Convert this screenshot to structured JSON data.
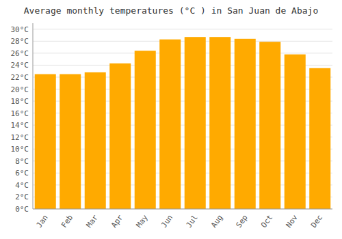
{
  "chart_data": {
    "type": "bar",
    "title": "Average monthly temperatures (°C ) in San Juan de Abajo",
    "categories": [
      "Jan",
      "Feb",
      "Mar",
      "Apr",
      "May",
      "Jun",
      "Jul",
      "Aug",
      "Sep",
      "Oct",
      "Nov",
      "Dec"
    ],
    "values": [
      22.5,
      22.5,
      22.8,
      24.3,
      26.4,
      28.3,
      28.7,
      28.7,
      28.4,
      27.9,
      25.8,
      23.5
    ],
    "color": "#FFAA00",
    "ylim": [
      0,
      31
    ],
    "yticks": [
      {
        "value": 0,
        "label": "0°C"
      },
      {
        "value": 2,
        "label": "2°C"
      },
      {
        "value": 4,
        "label": "4°C"
      },
      {
        "value": 6,
        "label": "6°C"
      },
      {
        "value": 8,
        "label": "8°C"
      },
      {
        "value": 10,
        "label": "10°C"
      },
      {
        "value": 12,
        "label": "12°C"
      },
      {
        "value": 14,
        "label": "14°C"
      },
      {
        "value": 16,
        "label": "16°C"
      },
      {
        "value": 18,
        "label": "18°C"
      },
      {
        "value": 20,
        "label": "20°C"
      },
      {
        "value": 22,
        "label": "22°C"
      },
      {
        "value": 24,
        "label": "24°C"
      },
      {
        "value": 26,
        "label": "26°C"
      },
      {
        "value": 28,
        "label": "28°C"
      },
      {
        "value": 30,
        "label": "30°C"
      }
    ],
    "grid": true
  }
}
